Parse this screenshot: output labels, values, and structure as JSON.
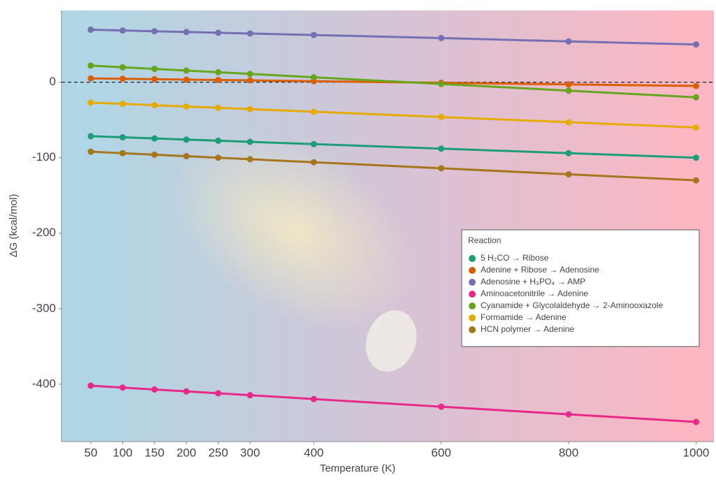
{
  "chart_data": {
    "type": "line",
    "x_label": "Temperature (K)",
    "y_label": "ΔG (kcal/mol)",
    "x": [
      50,
      100,
      150,
      200,
      250,
      300,
      400,
      600,
      800,
      1000
    ],
    "xlim": [
      4,
      1028
    ],
    "ylim": [
      -476,
      95
    ],
    "xticks": [
      50,
      100,
      150,
      200,
      250,
      300,
      400,
      600,
      800,
      1000
    ],
    "yticks": [
      -400,
      -300,
      -200,
      -100,
      0
    ],
    "reference_line": 0,
    "legend_title": "Reaction",
    "legend_position": "right",
    "series": [
      {
        "name": "5 H₂CO → Ribose",
        "color": "#1b9e77",
        "values": [
          -71.5,
          -73,
          -74.5,
          -76,
          -77.5,
          -79,
          -82,
          -88,
          -94,
          -100
        ]
      },
      {
        "name": "Adenine + Ribose → Adenosine",
        "color": "#d95f02",
        "values": [
          5,
          4.5,
          4,
          3.4,
          2.9,
          2.4,
          1.3,
          -0.8,
          -2.9,
          -5
        ]
      },
      {
        "name": "Adenosine + H₃PO₄ → AMP",
        "color": "#7570b3",
        "values": [
          69.5,
          68.5,
          67.5,
          66.5,
          65.5,
          64.5,
          62.5,
          58.5,
          54,
          50
        ]
      },
      {
        "name": "Aminoacetonitrile → Adenine",
        "color": "#e7298a",
        "values": [
          -402,
          -404.5,
          -407,
          -409.5,
          -412,
          -414.6,
          -419.7,
          -429.8,
          -439.9,
          -450
        ]
      },
      {
        "name": "Cyanamide + Glycolaldehyde → 2-Aminooxazole",
        "color": "#66a61e",
        "values": [
          22,
          19.8,
          17.6,
          15.4,
          13.2,
          11,
          6.5,
          -2.3,
          -11.2,
          -20
        ]
      },
      {
        "name": "Formamide → Adenine",
        "color": "#e6ab02",
        "values": [
          -27,
          -28.7,
          -30.5,
          -32.2,
          -33.9,
          -35.7,
          -39.1,
          -46.1,
          -53,
          -60
        ]
      },
      {
        "name": "HCN polymer → Adenine",
        "color": "#a6761d",
        "values": [
          -92,
          -94,
          -96,
          -98,
          -100,
          -102,
          -106,
          -114,
          -122,
          -130
        ]
      }
    ]
  }
}
